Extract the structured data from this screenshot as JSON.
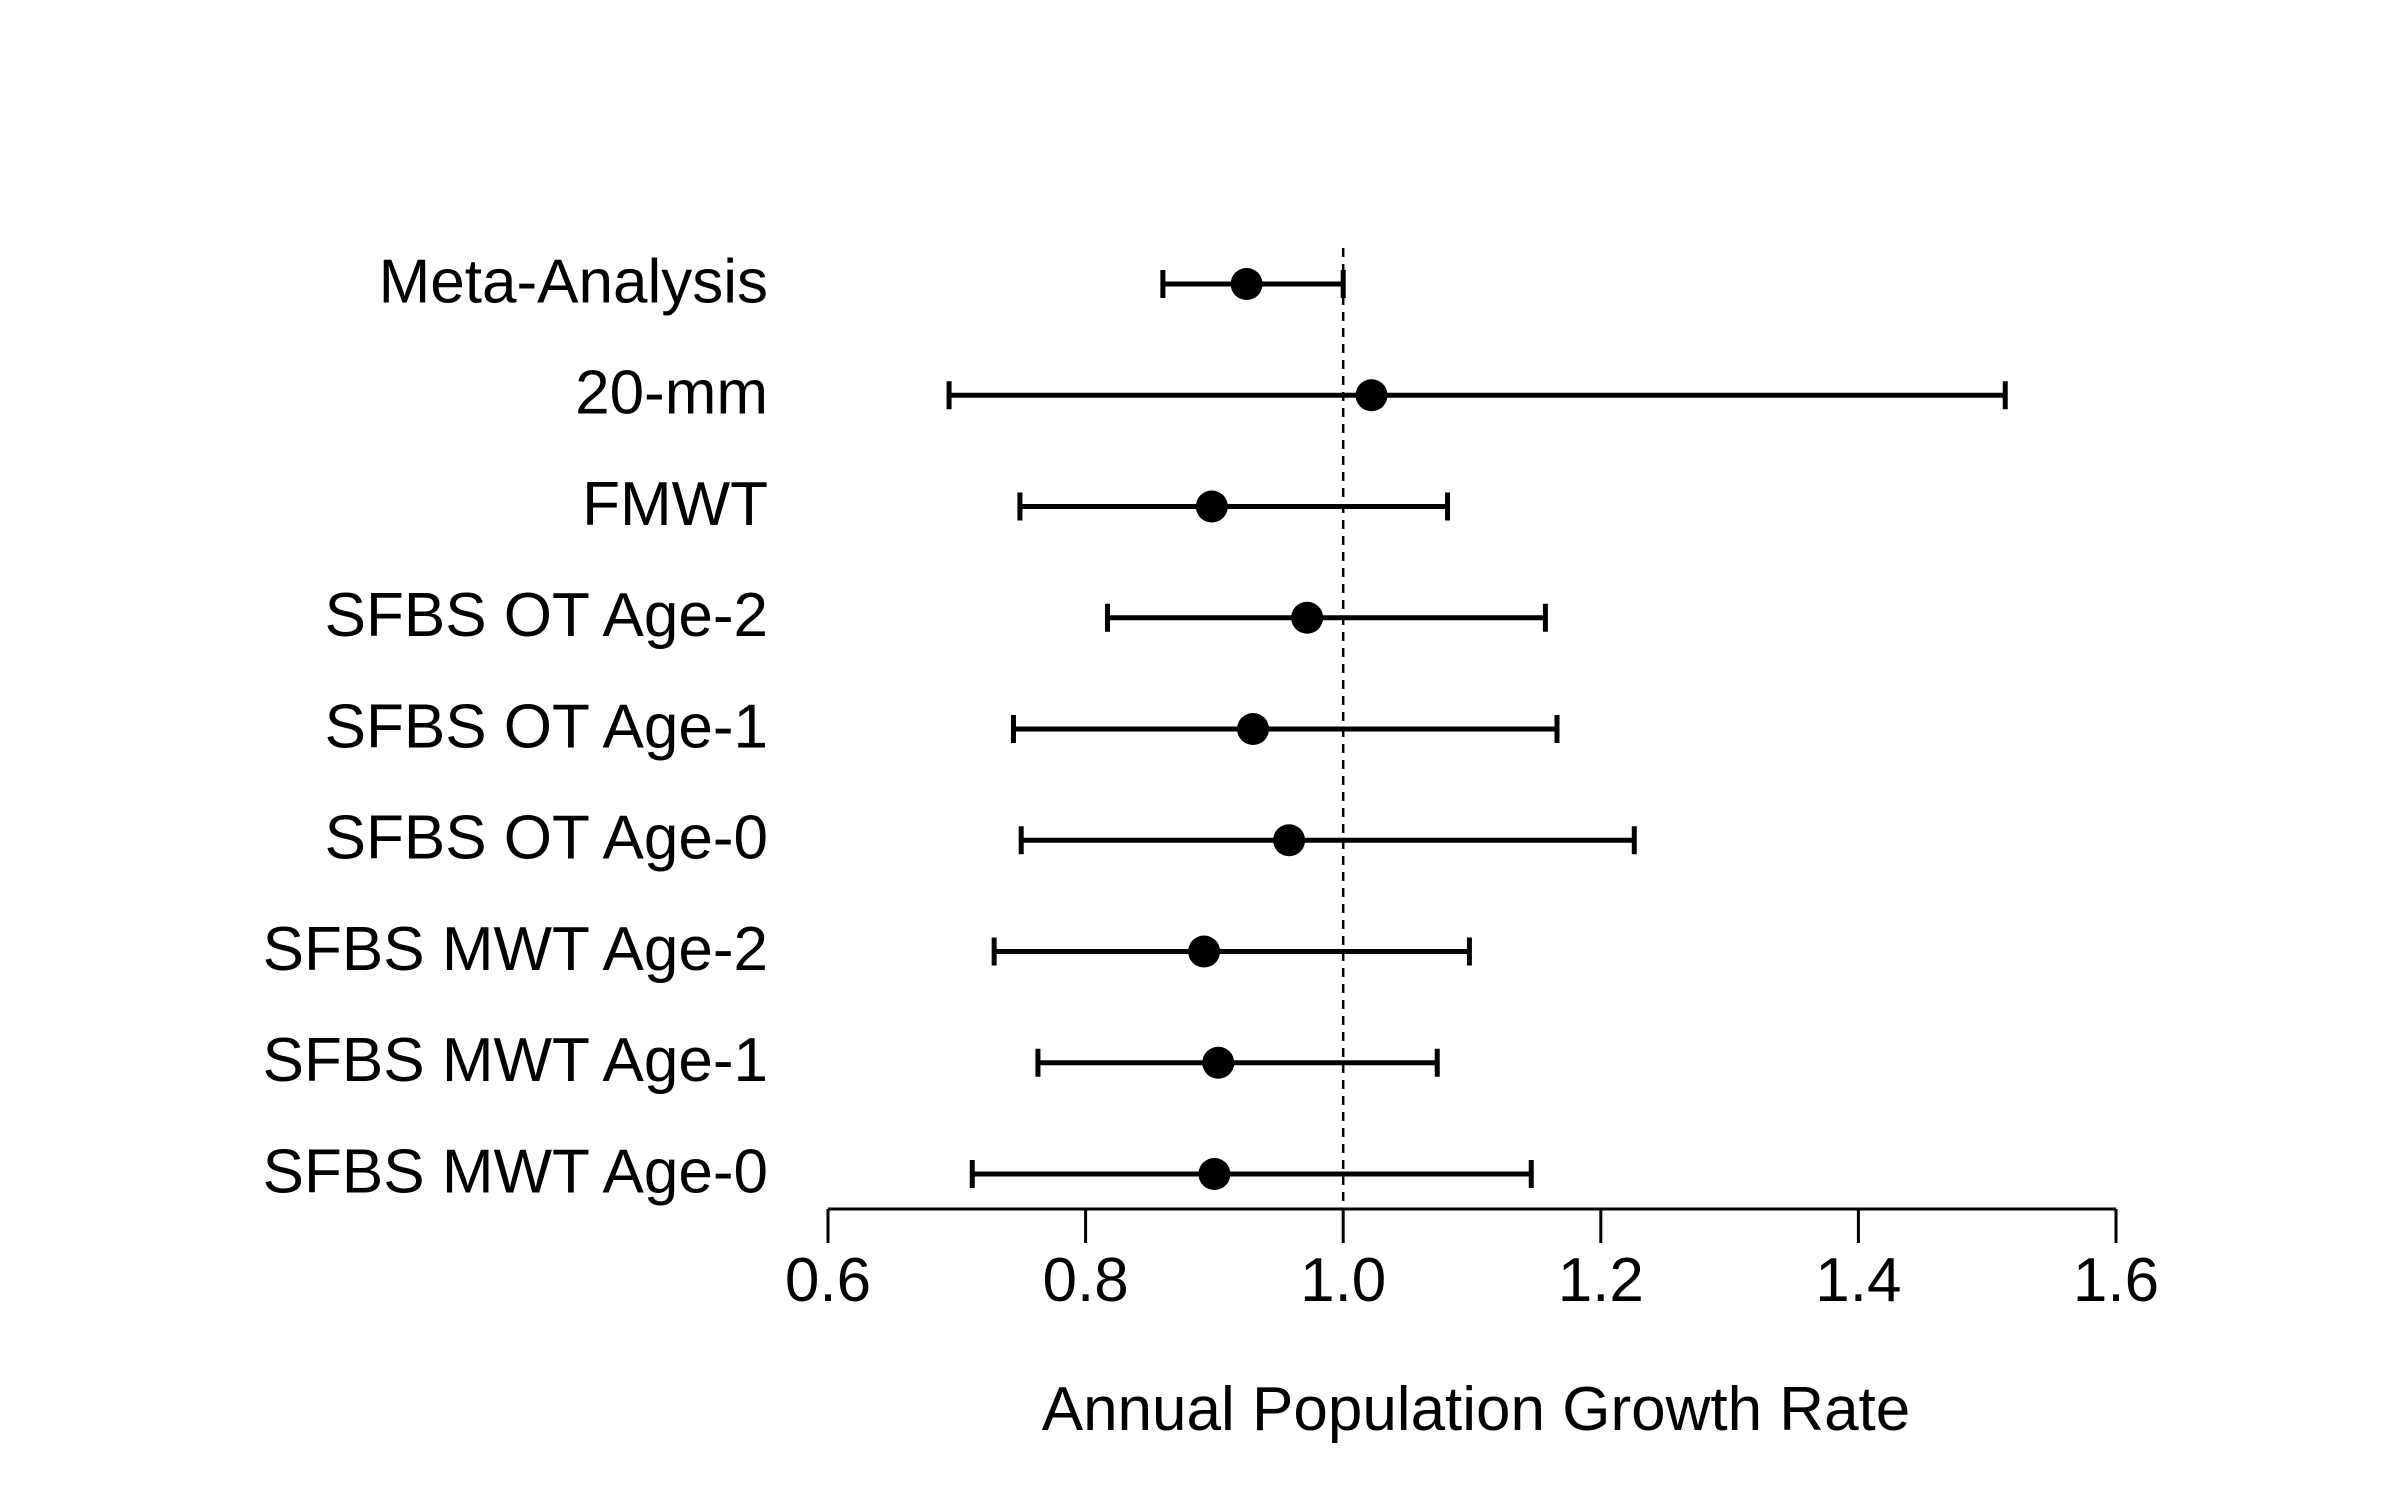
{
  "chart_data": {
    "type": "scatter",
    "subtype": "forest-plot",
    "title": "",
    "xlabel": "Annual Population Growth Rate",
    "ylabel": "",
    "xlim": [
      0.6,
      1.6
    ],
    "xticks": [
      "0.6",
      "0.8",
      "1.0",
      "1.2",
      "1.4",
      "1.6"
    ],
    "reference_line": 1.0,
    "grid": false,
    "colors": {
      "marks": "#000000",
      "background": "#ffffff"
    },
    "rows": [
      {
        "label": "Meta-Analysis",
        "estimate": 0.925,
        "lower": 0.86,
        "upper": 1.0
      },
      {
        "label": "20-mm",
        "estimate": 1.022,
        "lower": 0.694,
        "upper": 1.514
      },
      {
        "label": "FMWT",
        "estimate": 0.898,
        "lower": 0.749,
        "upper": 1.081
      },
      {
        "label": "SFBS OT Age-2",
        "estimate": 0.972,
        "lower": 0.817,
        "upper": 1.157
      },
      {
        "label": "SFBS OT Age-1",
        "estimate": 0.93,
        "lower": 0.744,
        "upper": 1.166
      },
      {
        "label": "SFBS OT Age-0",
        "estimate": 0.958,
        "lower": 0.75,
        "upper": 1.226
      },
      {
        "label": "SFBS MWT Age-2",
        "estimate": 0.892,
        "lower": 0.729,
        "upper": 1.098
      },
      {
        "label": "SFBS MWT Age-1",
        "estimate": 0.903,
        "lower": 0.763,
        "upper": 1.073
      },
      {
        "label": "SFBS MWT Age-0",
        "estimate": 0.9,
        "lower": 0.712,
        "upper": 1.146
      }
    ]
  }
}
